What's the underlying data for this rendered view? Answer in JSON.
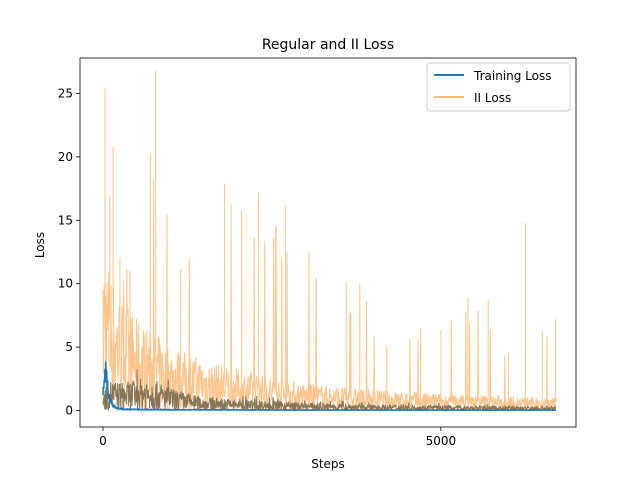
{
  "chart_data": {
    "type": "line",
    "title": "Regular and II Loss",
    "xlabel": "Steps",
    "ylabel": "Loss",
    "xlim": [
      -340,
      7000
    ],
    "ylim": [
      -1.3,
      27.8
    ],
    "xticks": [
      0,
      5000
    ],
    "yticks": [
      0,
      5,
      10,
      15,
      20,
      25
    ],
    "grid": false,
    "legend_position": "upper right",
    "series": [
      {
        "name": "Training Loss",
        "color": "#1f77b4",
        "points": [
          [
            0,
            1.6
          ],
          [
            20,
            1.9
          ],
          [
            40,
            3.5
          ],
          [
            60,
            2.2
          ],
          [
            80,
            1.3
          ],
          [
            100,
            0.8
          ],
          [
            150,
            0.4
          ],
          [
            200,
            0.2
          ],
          [
            300,
            0.1
          ],
          [
            500,
            0.08
          ],
          [
            1000,
            0.06
          ],
          [
            2000,
            0.05
          ],
          [
            3000,
            0.04
          ],
          [
            4000,
            0.04
          ],
          [
            5000,
            0.03
          ],
          [
            6000,
            0.03
          ],
          [
            6700,
            0.03
          ]
        ]
      },
      {
        "name": "II Loss",
        "color": "#ffbb78",
        "opacity": 0.85,
        "envelope": [
          [
            0,
            9.5
          ],
          [
            30,
            25.4
          ],
          [
            100,
            16.9
          ],
          [
            150,
            20.8
          ],
          [
            250,
            12.0
          ],
          [
            400,
            11.0
          ],
          [
            700,
            20.2
          ],
          [
            780,
            26.8
          ],
          [
            1150,
            11.1
          ],
          [
            1800,
            17.9
          ],
          [
            2050,
            15.8
          ],
          [
            2300,
            17.2
          ],
          [
            2700,
            16.1
          ],
          [
            3050,
            12.5
          ],
          [
            3600,
            10.1
          ],
          [
            3800,
            10.0
          ],
          [
            4200,
            5.0
          ],
          [
            4700,
            6.5
          ],
          [
            5000,
            6.3
          ],
          [
            5400,
            8.9
          ],
          [
            5700,
            8.7
          ],
          [
            6000,
            4.5
          ],
          [
            6250,
            14.8
          ],
          [
            6500,
            6.3
          ],
          [
            6700,
            7.2
          ]
        ],
        "baseline": [
          [
            0,
            8.5
          ],
          [
            200,
            6.0
          ],
          [
            500,
            4.5
          ],
          [
            1000,
            3.2
          ],
          [
            1500,
            2.5
          ],
          [
            2000,
            2.0
          ],
          [
            3000,
            1.3
          ],
          [
            4000,
            1.0
          ],
          [
            5000,
            0.8
          ],
          [
            6000,
            0.7
          ],
          [
            6700,
            0.6
          ]
        ]
      },
      {
        "name": "",
        "color": "#877556",
        "envelope": [
          [
            0,
            2.5
          ],
          [
            100,
            3.5
          ],
          [
            300,
            3.2
          ],
          [
            700,
            3.8
          ],
          [
            1000,
            2.5
          ],
          [
            1500,
            1.5
          ],
          [
            2000,
            1.3
          ],
          [
            2500,
            1.1
          ],
          [
            3000,
            0.9
          ],
          [
            4000,
            0.7
          ],
          [
            5000,
            0.6
          ],
          [
            6000,
            0.5
          ],
          [
            6700,
            0.5
          ]
        ]
      }
    ]
  }
}
